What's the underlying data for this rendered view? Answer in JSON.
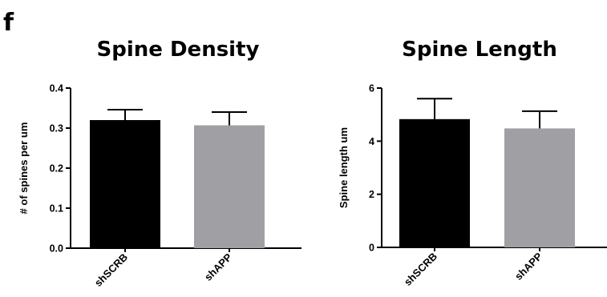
{
  "panel_label": "f",
  "chart_data": [
    {
      "type": "bar",
      "title": "Spine Density",
      "xlabel": "",
      "ylabel": "# of spines per um",
      "categories": [
        "shSCRB",
        "shAPP"
      ],
      "values": [
        0.32,
        0.307
      ],
      "errors": [
        0.026,
        0.033
      ],
      "colors": [
        "#000000",
        "#a0a0a4"
      ],
      "ylim": [
        0.0,
        0.4
      ],
      "yticks": [
        "0.0",
        "0.1",
        "0.2",
        "0.3",
        "0.4"
      ],
      "grid": false
    },
    {
      "type": "bar",
      "title": "Spine Length",
      "xlabel": "",
      "ylabel": "Spine length um",
      "categories": [
        "shSCRB",
        "shAPP"
      ],
      "values": [
        4.83,
        4.48
      ],
      "errors": [
        0.77,
        0.65
      ],
      "colors": [
        "#000000",
        "#a0a0a4"
      ],
      "ylim": [
        0,
        6
      ],
      "yticks": [
        "0",
        "2",
        "4",
        "6"
      ],
      "grid": false
    }
  ]
}
